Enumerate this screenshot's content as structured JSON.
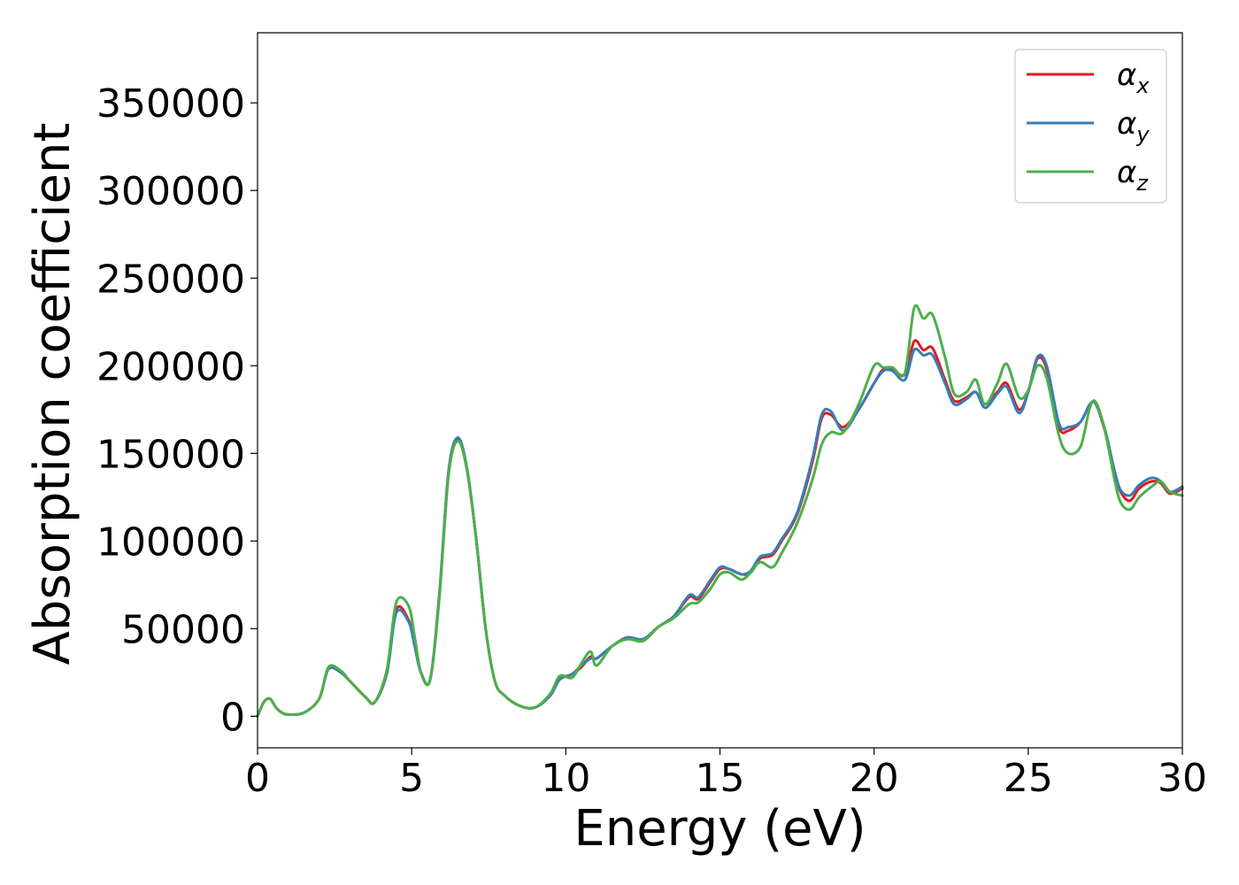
{
  "chart_data": {
    "type": "line",
    "title": "",
    "xlabel": "Energy (eV)",
    "ylabel": "Absorption coefficient",
    "xlim": [
      0,
      30
    ],
    "ylim": [
      -18000,
      390000
    ],
    "xticks": [
      0,
      5,
      10,
      15,
      20,
      25,
      30
    ],
    "xtick_labels": [
      "0",
      "5",
      "10",
      "15",
      "20",
      "25",
      "30"
    ],
    "yticks": [
      0,
      50000,
      100000,
      150000,
      200000,
      250000,
      300000,
      350000
    ],
    "ytick_labels": [
      "0",
      "50000",
      "100000",
      "150000",
      "200000",
      "250000",
      "300000",
      "350000"
    ],
    "grid": false,
    "legend_position": "top-right",
    "series": [
      {
        "name": "α_x",
        "legend_symbol": "α",
        "legend_sub": "x",
        "color": "#e41a1c",
        "x": [
          0,
          0.2,
          0.4,
          0.6,
          0.8,
          1.0,
          1.5,
          2.0,
          2.3,
          2.7,
          3.0,
          3.5,
          3.8,
          4.2,
          4.5,
          4.9,
          5.1,
          5.3,
          5.6,
          5.9,
          6.2,
          6.5,
          6.8,
          7.1,
          7.4,
          7.7,
          8.0,
          8.5,
          9.0,
          9.5,
          9.8,
          10.2,
          10.5,
          10.8,
          11.0,
          11.5,
          12.0,
          12.5,
          13.0,
          13.5,
          14.0,
          14.3,
          14.7,
          15.0,
          15.3,
          15.7,
          16.0,
          16.3,
          16.7,
          17.0,
          17.5,
          18.0,
          18.3,
          18.6,
          19.0,
          19.5,
          20.0,
          20.3,
          20.6,
          21.0,
          21.3,
          21.6,
          21.9,
          22.3,
          22.6,
          23.0,
          23.3,
          23.6,
          24.0,
          24.3,
          24.7,
          25.0,
          25.3,
          25.6,
          26.0,
          26.3,
          26.7,
          27.0,
          27.2,
          27.5,
          27.8,
          28.0,
          28.3,
          28.6,
          29.0,
          29.3,
          29.6,
          30.0
        ],
        "values": [
          0,
          8000,
          10000,
          5000,
          2000,
          1000,
          2000,
          10000,
          27000,
          25000,
          20000,
          11000,
          8000,
          25000,
          61000,
          55000,
          40000,
          25000,
          21000,
          70000,
          140000,
          158000,
          140000,
          100000,
          50000,
          20000,
          12000,
          6000,
          5000,
          12000,
          21000,
          24000,
          28000,
          34000,
          33000,
          40000,
          45000,
          43000,
          51000,
          57000,
          68000,
          67000,
          77000,
          84000,
          84000,
          81000,
          82000,
          90000,
          92000,
          100000,
          115000,
          145000,
          170000,
          172000,
          165000,
          175000,
          190000,
          198000,
          198000,
          195000,
          214000,
          209000,
          210000,
          192000,
          180000,
          182000,
          185000,
          178000,
          185000,
          190000,
          175000,
          185000,
          204000,
          198000,
          165000,
          163000,
          168000,
          178000,
          178000,
          162000,
          140000,
          128000,
          123000,
          130000,
          134000,
          133000,
          127000,
          130000
        ]
      },
      {
        "name": "α_y",
        "legend_symbol": "α",
        "legend_sub": "y",
        "color": "#377eb8",
        "x": [
          0,
          0.2,
          0.4,
          0.6,
          0.8,
          1.0,
          1.5,
          2.0,
          2.3,
          2.7,
          3.0,
          3.5,
          3.8,
          4.2,
          4.5,
          4.9,
          5.1,
          5.3,
          5.6,
          5.9,
          6.2,
          6.5,
          6.8,
          7.1,
          7.4,
          7.7,
          8.0,
          8.5,
          9.0,
          9.5,
          9.8,
          10.2,
          10.5,
          10.8,
          11.0,
          11.5,
          12.0,
          12.5,
          13.0,
          13.5,
          14.0,
          14.3,
          14.7,
          15.0,
          15.3,
          15.7,
          16.0,
          16.3,
          16.7,
          17.0,
          17.5,
          18.0,
          18.3,
          18.6,
          19.0,
          19.5,
          20.0,
          20.3,
          20.6,
          21.0,
          21.3,
          21.6,
          21.9,
          22.3,
          22.6,
          23.0,
          23.3,
          23.6,
          24.0,
          24.3,
          24.7,
          25.0,
          25.3,
          25.6,
          26.0,
          26.3,
          26.7,
          27.0,
          27.2,
          27.5,
          27.8,
          28.0,
          28.3,
          28.6,
          29.0,
          29.3,
          29.6,
          30.0
        ],
        "values": [
          0,
          8000,
          10000,
          5000,
          2000,
          1000,
          2000,
          10000,
          27000,
          25000,
          20000,
          11000,
          8000,
          25000,
          59000,
          54000,
          40000,
          25000,
          21000,
          70000,
          140000,
          159000,
          141000,
          100000,
          50000,
          20000,
          12000,
          6000,
          5000,
          12000,
          21000,
          24000,
          29000,
          33000,
          33000,
          40000,
          45000,
          44000,
          51000,
          57000,
          69000,
          68000,
          78000,
          85000,
          84000,
          81000,
          83000,
          91000,
          93000,
          101000,
          116000,
          147000,
          172000,
          174000,
          163000,
          175000,
          190000,
          197000,
          197000,
          192000,
          209000,
          206000,
          206000,
          190000,
          178000,
          181000,
          185000,
          176000,
          184000,
          188000,
          173000,
          185000,
          205000,
          200000,
          167000,
          165000,
          168000,
          178000,
          178000,
          163000,
          140000,
          129000,
          126000,
          132000,
          136000,
          134000,
          128000,
          131000
        ]
      },
      {
        "name": "α_z",
        "legend_symbol": "α",
        "legend_sub": "z",
        "color": "#4daf4a",
        "x": [
          0,
          0.2,
          0.4,
          0.6,
          0.8,
          1.0,
          1.5,
          2.0,
          2.3,
          2.7,
          3.0,
          3.5,
          3.8,
          4.2,
          4.5,
          4.9,
          5.1,
          5.3,
          5.6,
          5.9,
          6.2,
          6.5,
          6.8,
          7.1,
          7.4,
          7.7,
          8.0,
          8.5,
          9.0,
          9.5,
          9.8,
          10.2,
          10.5,
          10.8,
          11.0,
          11.5,
          12.0,
          12.5,
          13.0,
          13.5,
          14.0,
          14.3,
          14.7,
          15.0,
          15.3,
          15.7,
          16.0,
          16.3,
          16.7,
          17.0,
          17.5,
          18.0,
          18.3,
          18.6,
          19.0,
          19.5,
          20.0,
          20.3,
          20.6,
          21.0,
          21.3,
          21.6,
          21.9,
          22.3,
          22.6,
          23.0,
          23.3,
          23.6,
          24.0,
          24.3,
          24.7,
          25.0,
          25.3,
          25.6,
          26.0,
          26.3,
          26.7,
          27.0,
          27.2,
          27.5,
          27.8,
          28.0,
          28.3,
          28.6,
          29.0,
          29.3,
          29.6,
          30.0
        ],
        "values": [
          0,
          8000,
          10000,
          5000,
          2000,
          1000,
          2000,
          10000,
          28000,
          26000,
          20000,
          11000,
          8000,
          27000,
          65000,
          63000,
          45000,
          25000,
          21000,
          68000,
          138000,
          157000,
          140000,
          100000,
          50000,
          20000,
          12000,
          6000,
          5000,
          13000,
          23000,
          22000,
          30000,
          37000,
          29000,
          40000,
          44000,
          43000,
          51000,
          56000,
          64000,
          65000,
          73000,
          81000,
          82000,
          78000,
          82000,
          88000,
          85000,
          93000,
          110000,
          135000,
          155000,
          162000,
          162000,
          178000,
          200000,
          199000,
          199000,
          196000,
          233000,
          227000,
          229000,
          205000,
          184000,
          185000,
          192000,
          178000,
          190000,
          201000,
          182000,
          186000,
          200000,
          193000,
          160000,
          150000,
          154000,
          176000,
          179000,
          162000,
          135000,
          122000,
          118000,
          125000,
          131000,
          134000,
          128000,
          126000
        ]
      }
    ]
  }
}
